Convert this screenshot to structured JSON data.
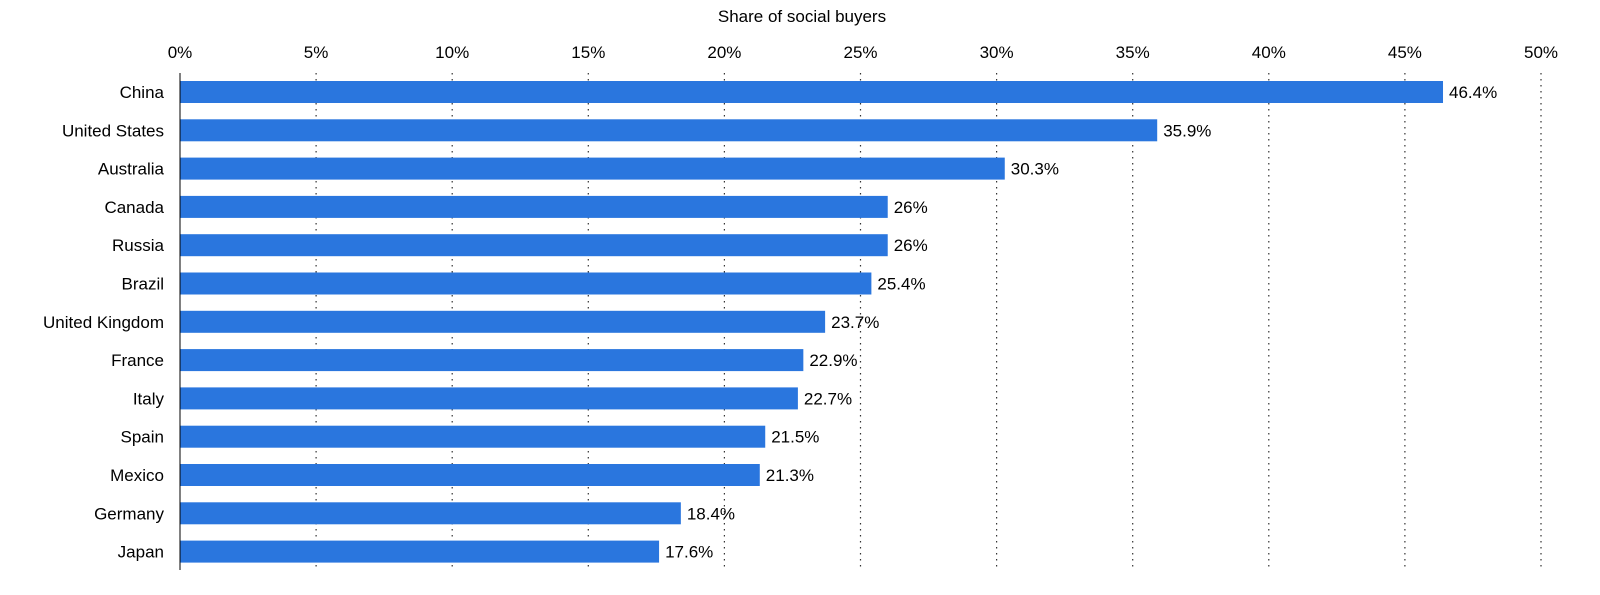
{
  "chart_data": {
    "type": "bar",
    "orientation": "horizontal",
    "xlabel": "Share of social buyers",
    "x_axis_position": "top",
    "xlim": [
      0,
      50
    ],
    "tick_values": [
      0,
      5,
      10,
      15,
      20,
      25,
      30,
      35,
      40,
      45,
      50
    ],
    "tick_labels": [
      "0%",
      "5%",
      "10%",
      "15%",
      "20%",
      "25%",
      "30%",
      "35%",
      "40%",
      "45%",
      "50%"
    ],
    "grid": "vertical-dotted",
    "bar_color": "#2a76de",
    "categories": [
      "China",
      "United States",
      "Australia",
      "Canada",
      "Russia",
      "Brazil",
      "United Kingdom",
      "France",
      "Italy",
      "Spain",
      "Mexico",
      "Germany",
      "Japan"
    ],
    "values": [
      46.4,
      35.9,
      30.3,
      26,
      26,
      25.4,
      23.7,
      22.9,
      22.7,
      21.5,
      21.3,
      18.4,
      17.6
    ],
    "value_labels": [
      "46.4%",
      "35.9%",
      "30.3%",
      "26%",
      "26%",
      "25.4%",
      "23.7%",
      "22.9%",
      "22.7%",
      "21.5%",
      "21.3%",
      "18.4%",
      "17.6%"
    ]
  }
}
